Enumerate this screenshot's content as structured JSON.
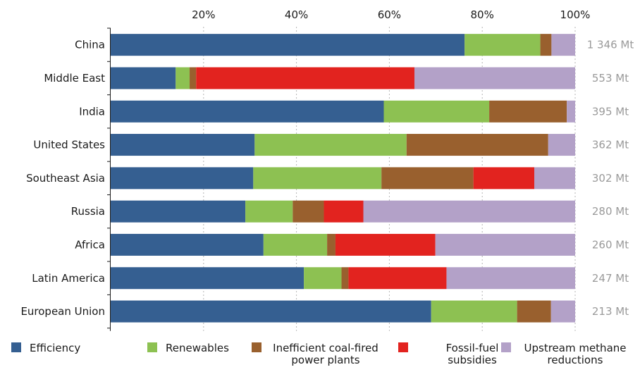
{
  "chart_data": {
    "type": "bar",
    "orientation": "horizontal",
    "stacked": true,
    "percent_stacked": true,
    "categories": [
      "China",
      "Middle East",
      "India",
      "United States",
      "Southeast Asia",
      "Russia",
      "Africa",
      "Latin America",
      "European Union"
    ],
    "totals": [
      "1 346 Mt",
      "553 Mt",
      "395 Mt",
      "362 Mt",
      "302 Mt",
      "280 Mt",
      "260 Mt",
      "247 Mt",
      "213 Mt"
    ],
    "xlim": [
      0,
      100
    ],
    "x_tick_labels": [
      "20%",
      "40%",
      "60%",
      "80%",
      "100%"
    ],
    "x_ticks": [
      20,
      40,
      60,
      80,
      100
    ],
    "x_axis_position": "top",
    "grid": "vertical dotted",
    "legend_position": "bottom",
    "series": [
      {
        "name": "Efficiency",
        "legend_lines": [
          "Efficiency"
        ],
        "color": "#355f91",
        "values": [
          76.2,
          14,
          58.8,
          31,
          30.7,
          29,
          32.9,
          41.6,
          69
        ]
      },
      {
        "name": "Renewables",
        "legend_lines": [
          "Renewables"
        ],
        "color": "#8dc152",
        "values": [
          16.3,
          3,
          22.7,
          32.7,
          27.6,
          10.2,
          13.7,
          8.1,
          18.5
        ]
      },
      {
        "name": "Inefficient coal-fired power plants",
        "legend_lines": [
          "Inefficient coal-fired",
          "power plants"
        ],
        "color": "#99602e",
        "values": [
          2.4,
          1.4,
          16.7,
          30.5,
          19.8,
          6.7,
          1.8,
          1.5,
          7.3
        ]
      },
      {
        "name": "Fossil-fuel subsidies",
        "legend_lines": [
          "Fossil-fuel",
          "subsidies"
        ],
        "color": "#e2231f",
        "values": [
          0,
          47,
          0,
          0,
          13.1,
          8.5,
          21.5,
          21.1,
          0
        ]
      },
      {
        "name": "Upstream methane reductions",
        "legend_lines": [
          "Upstream methane",
          "reductions"
        ],
        "color": "#b3a1c8",
        "values": [
          5.1,
          34.6,
          1.8,
          5.8,
          8.8,
          45.6,
          30.1,
          27.7,
          5.2
        ]
      }
    ]
  }
}
